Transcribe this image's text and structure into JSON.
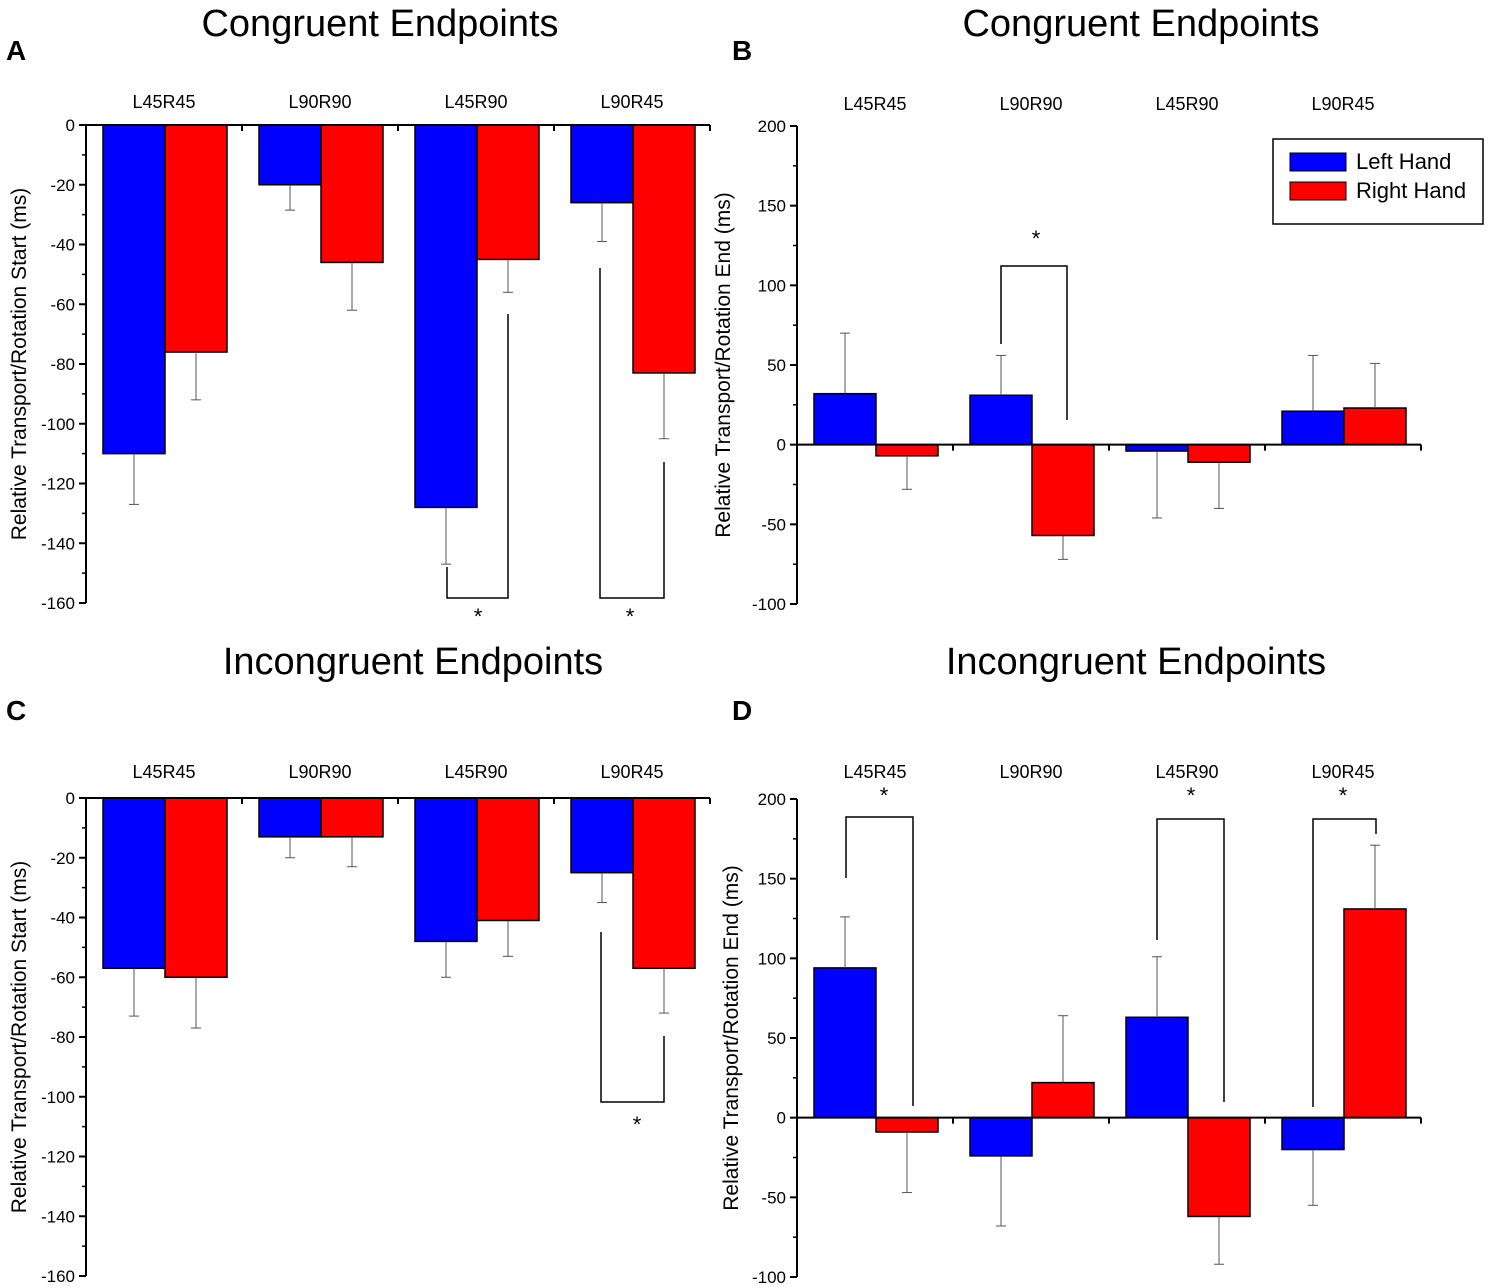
{
  "colors": {
    "left": "#0000FF",
    "right": "#FF0000",
    "axis": "#000000"
  },
  "legend": {
    "left_label": "Left Hand",
    "right_label": "Right Hand",
    "placement": "top-right of panel B"
  },
  "chart_data": [
    {
      "panel": "A",
      "type": "bar",
      "title": "Congruent Endpoints",
      "ylabel": "Relative Transport/Rotation Start (ms)",
      "ylim": [
        -160,
        0
      ],
      "yticks": [
        0,
        -20,
        -40,
        -60,
        -80,
        -100,
        -120,
        -140,
        -160
      ],
      "categories": [
        "L45R45",
        "L90R90",
        "L45R90",
        "L90R45"
      ],
      "series": [
        {
          "name": "Left Hand",
          "values": [
            -110,
            -20,
            -128,
            -26
          ],
          "errors": [
            17,
            8.5,
            19,
            13
          ]
        },
        {
          "name": "Right Hand",
          "values": [
            -76,
            -46,
            -45,
            -83
          ],
          "errors": [
            16,
            16,
            11,
            22
          ]
        }
      ],
      "significance": [
        {
          "category": "L45R90",
          "label": "*"
        },
        {
          "category": "L90R45",
          "label": "*"
        }
      ]
    },
    {
      "panel": "B",
      "type": "bar",
      "title": "Congruent Endpoints",
      "ylabel": "Relative Transport/Rotation End (ms)",
      "ylim": [
        -100,
        200
      ],
      "yticks": [
        200,
        150,
        100,
        50,
        0,
        -50,
        -100
      ],
      "categories": [
        "L45R45",
        "L90R90",
        "L45R90",
        "L90R45"
      ],
      "series": [
        {
          "name": "Left Hand",
          "values": [
            32,
            31,
            -4,
            21
          ],
          "errors": [
            38,
            25,
            42,
            35
          ]
        },
        {
          "name": "Right Hand",
          "values": [
            -7,
            -57,
            -11,
            23
          ],
          "errors": [
            21,
            15,
            29,
            28
          ]
        }
      ],
      "significance": [
        {
          "category": "L90R90",
          "label": "*"
        }
      ]
    },
    {
      "panel": "C",
      "type": "bar",
      "title": "Incongruent Endpoints",
      "ylabel": "Relative Transport/Rotation Start (ms)",
      "ylim": [
        -160,
        0
      ],
      "yticks": [
        0,
        -20,
        -40,
        -60,
        -80,
        -100,
        -120,
        -140,
        -160
      ],
      "categories": [
        "L45R45",
        "L90R90",
        "L45R90",
        "L90R45"
      ],
      "series": [
        {
          "name": "Left Hand",
          "values": [
            -57,
            -13,
            -48,
            -25
          ],
          "errors": [
            16,
            7,
            12,
            10
          ]
        },
        {
          "name": "Right Hand",
          "values": [
            -60,
            -13,
            -41,
            -57
          ],
          "errors": [
            17,
            10,
            12,
            15
          ]
        }
      ],
      "significance": [
        {
          "category": "L90R45",
          "label": "*"
        }
      ]
    },
    {
      "panel": "D",
      "type": "bar",
      "title": "Incongruent Endpoints",
      "ylabel": "Relative Transport/Rotation End (ms)",
      "ylim": [
        -100,
        200
      ],
      "yticks": [
        200,
        150,
        100,
        50,
        0,
        -50,
        -100
      ],
      "categories": [
        "L45R45",
        "L90R90",
        "L45R90",
        "L90R45"
      ],
      "series": [
        {
          "name": "Left Hand",
          "values": [
            94,
            -24,
            63,
            -20
          ],
          "errors": [
            32,
            44,
            38,
            35
          ]
        },
        {
          "name": "Right Hand",
          "values": [
            -9,
            22,
            -62,
            131
          ],
          "errors": [
            38,
            42,
            30,
            40
          ]
        }
      ],
      "significance": [
        {
          "category": "L45R45",
          "label": "*"
        },
        {
          "category": "L45R90",
          "label": "*"
        },
        {
          "category": "L90R45",
          "label": "*"
        }
      ]
    }
  ]
}
